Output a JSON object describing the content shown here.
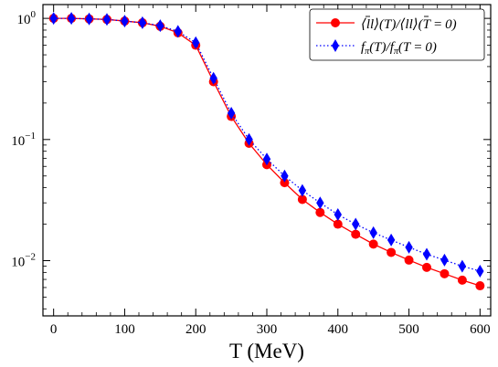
{
  "chart_data": {
    "type": "line",
    "title": "",
    "xlabel": "T (MeV)",
    "ylabel": "",
    "xlim": [
      -15,
      615
    ],
    "ylim": [
      0.0035,
      1.3
    ],
    "yscale": "log",
    "legend_position": "top-right",
    "x_ticks": [
      0,
      100,
      200,
      300,
      400,
      500,
      600
    ],
    "x_tick_labels": [
      "0",
      "100",
      "200",
      "300",
      "400",
      "500",
      "600"
    ],
    "y_ticks": [
      1,
      0.1,
      0.01
    ],
    "y_tick_labels": [
      {
        "base": "10",
        "exp": "0"
      },
      {
        "base": "10",
        "exp": "−1"
      },
      {
        "base": "10",
        "exp": "−2"
      }
    ],
    "x": [
      0,
      25,
      50,
      75,
      100,
      125,
      150,
      175,
      200,
      225,
      250,
      275,
      300,
      325,
      350,
      375,
      400,
      425,
      450,
      475,
      500,
      525,
      550,
      575,
      600
    ],
    "series": [
      {
        "name": "⟨l̄l⟩(T)/⟨l̄l⟩(T=0)",
        "color": "#ff0000",
        "marker": "circle",
        "line_style": "solid",
        "values": [
          1.0,
          1.0,
          0.99,
          0.98,
          0.95,
          0.92,
          0.86,
          0.76,
          0.6,
          0.3,
          0.155,
          0.093,
          0.062,
          0.044,
          0.032,
          0.025,
          0.02,
          0.0165,
          0.0137,
          0.0117,
          0.0101,
          0.0088,
          0.0078,
          0.0069,
          0.0062
        ]
      },
      {
        "name": "fπ(T)/fπ(T=0)",
        "color": "#0000ff",
        "marker": "diamond",
        "line_style": "dotted",
        "values": [
          1.0,
          1.0,
          0.99,
          0.98,
          0.95,
          0.92,
          0.87,
          0.78,
          0.63,
          0.32,
          0.165,
          0.1,
          0.069,
          0.05,
          0.038,
          0.03,
          0.024,
          0.02,
          0.017,
          0.0148,
          0.0129,
          0.0113,
          0.0101,
          0.009,
          0.0082
        ]
      }
    ]
  },
  "legend": {
    "entry1": {
      "prefix": "⟨",
      "bar": "l",
      "mid": "l⟩(T)/⟨",
      "bar2": "l",
      "suffix": "l⟩(T = 0)"
    },
    "entry2": {
      "f": "f",
      "sub": "π",
      "mid": "(T)/",
      "f2": "f",
      "sub2": "π",
      "suffix": "(T = 0)"
    }
  }
}
